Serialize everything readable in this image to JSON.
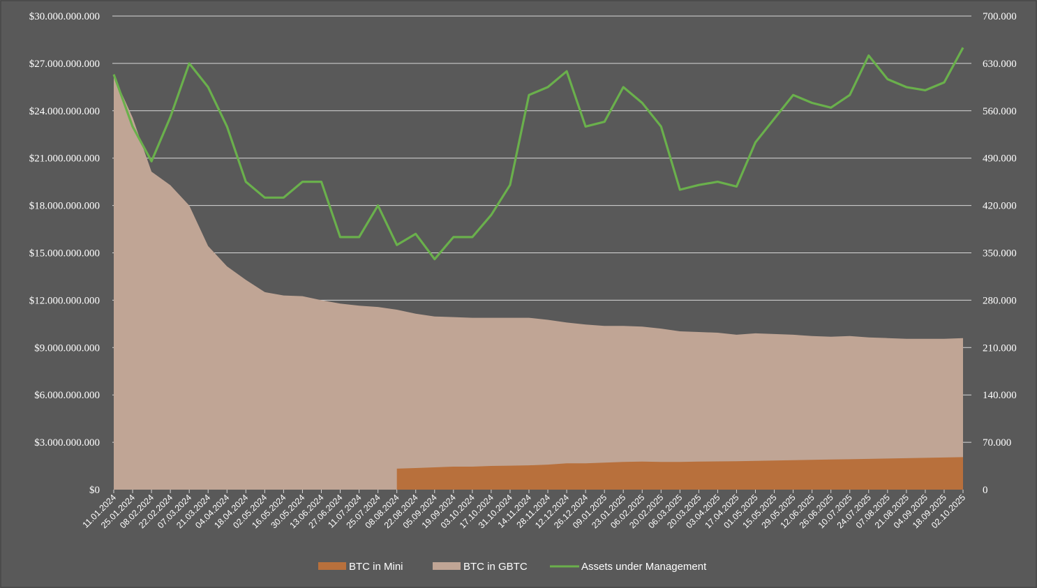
{
  "chart_data": {
    "type": "area",
    "x": [
      "11.01.2024",
      "25.01.2024",
      "08.02.2024",
      "22.02.2024",
      "07.03.2024",
      "21.03.2024",
      "04.04.2024",
      "18.04.2024",
      "02.05.2024",
      "16.05.2024",
      "30.05.2024",
      "13.06.2024",
      "27.06.2024",
      "11.07.2024",
      "25.07.2024",
      "08.08.2024",
      "22.08.2024",
      "05.09.2024",
      "19.09.2024",
      "03.10.2024",
      "17.10.2024",
      "31.10.2024",
      "14.11.2024",
      "28.11.2024",
      "12.12.2024",
      "26.12.2024",
      "09.01.2025",
      "23.01.2025",
      "06.02.2025",
      "20.02.2025",
      "06.03.2025",
      "20.03.2025",
      "03.04.2025",
      "17.04.2025",
      "01.05.2025",
      "15.05.2025",
      "29.05.2025",
      "12.06.2025",
      "26.06.2025",
      "10.07.2025",
      "24.07.2025",
      "07.08.2025",
      "21.08.2025",
      "04.09.2025",
      "18.09.2025",
      "02.10.2025"
    ],
    "y_left": {
      "ylim": [
        0,
        30000000000
      ],
      "ticks": [
        "$0",
        "$3.000.000.000",
        "$6.000.000.000",
        "$9.000.000.000",
        "$12.000.000.000",
        "$15.000.000.000",
        "$18.000.000.000",
        "$21.000.000.000",
        "$24.000.000.000",
        "$27.000.000.000",
        "$30.000.000.000"
      ]
    },
    "y_right": {
      "ylim": [
        0,
        700000
      ],
      "ticks": [
        "0",
        "70.000",
        "140.000",
        "210.000",
        "280.000",
        "350.000",
        "420.000",
        "490.000",
        "560.000",
        "630.000",
        "700.000"
      ]
    },
    "grid": true,
    "legend_position": "bottom",
    "series": [
      {
        "name": "BTC in Mini",
        "type": "area",
        "axis": "right",
        "color": "#b8703c",
        "values": [
          0,
          0,
          0,
          0,
          0,
          0,
          0,
          0,
          0,
          0,
          0,
          0,
          0,
          0,
          0,
          31000,
          32000,
          33000,
          34000,
          34000,
          35000,
          35500,
          36000,
          37000,
          39000,
          39000,
          40000,
          41000,
          41500,
          41000,
          41000,
          41500,
          41800,
          42000,
          42500,
          43000,
          43500,
          44000,
          44500,
          45000,
          45500,
          46000,
          46500,
          47000,
          47500,
          48000
        ]
      },
      {
        "name": "BTC in GBTC",
        "type": "area",
        "axis": "right",
        "color": "#c0a595",
        "values": [
          612000,
          550000,
          470000,
          450000,
          420000,
          360000,
          330000,
          310000,
          292000,
          287000,
          286000,
          280000,
          275000,
          272000,
          270000,
          266000,
          260000,
          256000,
          255000,
          254000,
          254000,
          254000,
          254000,
          251000,
          247000,
          244000,
          242000,
          242000,
          241000,
          238000,
          234000,
          233000,
          232000,
          229000,
          231000,
          230000,
          229000,
          227000,
          226000,
          227000,
          225000,
          224000,
          223000,
          223000,
          223000,
          224000
        ]
      },
      {
        "name": "Assets under Management",
        "type": "line",
        "axis": "left",
        "color": "#6ab04c",
        "values": [
          26300000000,
          23000000000,
          20800000000,
          23600000000,
          27000000000,
          25500000000,
          23000000000,
          19500000000,
          18500000000,
          18500000000,
          19500000000,
          19500000000,
          16000000000,
          16000000000,
          18000000000,
          15500000000,
          16200000000,
          14600000000,
          16000000000,
          16000000000,
          17400000000,
          19300000000,
          25000000000,
          25500000000,
          26500000000,
          23000000000,
          23300000000,
          25500000000,
          24500000000,
          23000000000,
          19000000000,
          19300000000,
          19500000000,
          19200000000,
          22000000000,
          23500000000,
          25000000000,
          24500000000,
          24200000000,
          25000000000,
          27500000000,
          26000000000,
          25500000000,
          25300000000,
          25800000000,
          28000000000
        ]
      }
    ]
  }
}
